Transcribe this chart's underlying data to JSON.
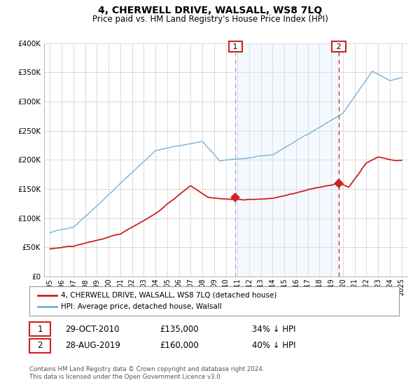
{
  "title": "4, CHERWELL DRIVE, WALSALL, WS8 7LQ",
  "subtitle": "Price paid vs. HM Land Registry's House Price Index (HPI)",
  "ylim": [
    0,
    400000
  ],
  "yticks": [
    0,
    50000,
    100000,
    150000,
    200000,
    250000,
    300000,
    350000,
    400000
  ],
  "ytick_labels": [
    "£0",
    "£50K",
    "£100K",
    "£150K",
    "£200K",
    "£250K",
    "£300K",
    "£350K",
    "£400K"
  ],
  "xlim_start": 1994.5,
  "xlim_end": 2025.5,
  "hpi_color": "#7ab0d4",
  "price_color": "#cc2222",
  "sale1_date": 2010.83,
  "sale1_price": 135000,
  "sale2_date": 2019.66,
  "sale2_price": 160000,
  "shade_color": "#ddeeff",
  "grid_color": "#cccccc",
  "bg_color": "#ffffff",
  "legend_label_price": "4, CHERWELL DRIVE, WALSALL, WS8 7LQ (detached house)",
  "legend_label_hpi": "HPI: Average price, detached house, Walsall",
  "ann1_date": "29-OCT-2010",
  "ann1_price": "£135,000",
  "ann1_hpi": "34% ↓ HPI",
  "ann2_date": "28-AUG-2019",
  "ann2_price": "£160,000",
  "ann2_hpi": "40% ↓ HPI",
  "footer1": "Contains HM Land Registry data © Crown copyright and database right 2024.",
  "footer2": "This data is licensed under the Open Government Licence v3.0."
}
